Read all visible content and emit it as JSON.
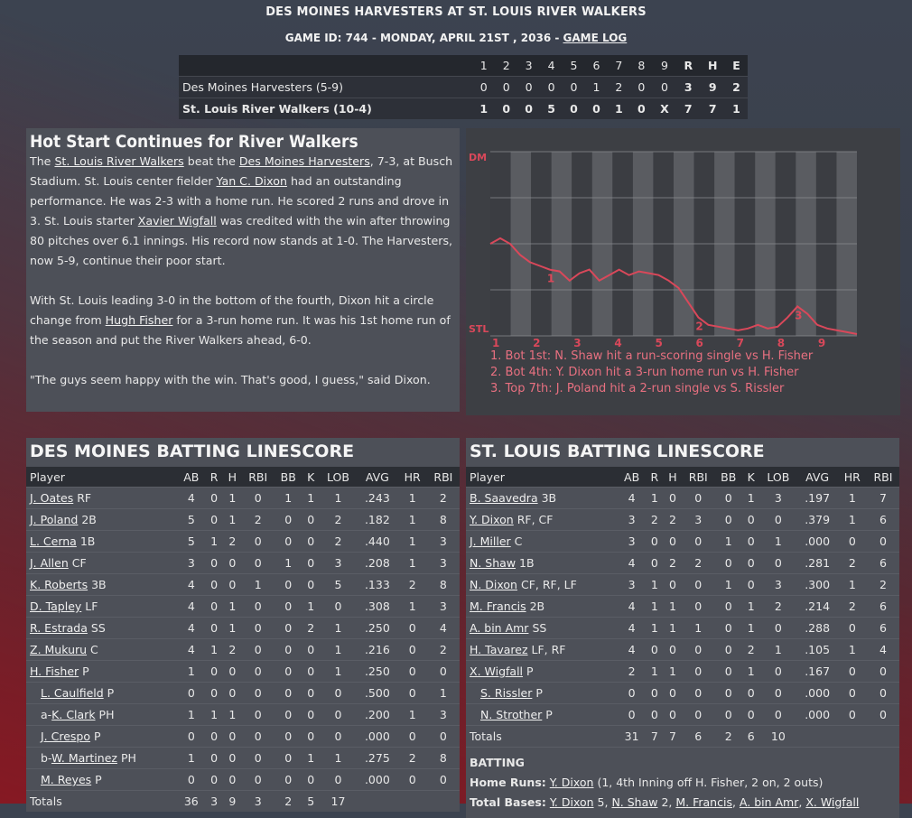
{
  "header": {
    "title": "DES MOINES HARVESTERS AT ST. LOUIS RIVER WALKERS",
    "subtitle_prefix": "GAME ID: 744 - MONDAY, APRIL 21ST , 2036 - ",
    "game_log_link": "GAME LOG"
  },
  "linescore": {
    "innings": [
      "1",
      "2",
      "3",
      "4",
      "5",
      "6",
      "7",
      "8",
      "9"
    ],
    "rhe": [
      "R",
      "H",
      "E"
    ],
    "teams": [
      {
        "name": "Des Moines Harvesters (5-9)",
        "innings": [
          "0",
          "0",
          "0",
          "0",
          "0",
          "1",
          "2",
          "0",
          "0"
        ],
        "rhe": [
          "3",
          "9",
          "2"
        ]
      },
      {
        "name": "St. Louis River Walkers (10-4)",
        "innings": [
          "1",
          "0",
          "0",
          "5",
          "0",
          "0",
          "1",
          "0",
          "X"
        ],
        "rhe": [
          "7",
          "7",
          "1"
        ]
      }
    ]
  },
  "story": {
    "headline": "Hot Start Continues for River Walkers",
    "p1": {
      "t1": "The ",
      "l1": "St. Louis River Walkers",
      "t2": " beat the ",
      "l2": "Des Moines Harvesters",
      "t3": ", 7-3, at Busch Stadium. St. Louis center fielder ",
      "l3": "Yan C. Dixon",
      "t4": " had an outstanding performance. He was 2-3 with a home run. He scored 2 runs and drove in 3. St. Louis starter ",
      "l4": "Xavier Wigfall",
      "t5": " was credited with the win after throwing 80 pitches over 6.1 innings. His record now stands at 1-0. The Harvesters, now 5-9, continue their poor start."
    },
    "p2": {
      "t1": "With St. Louis leading 3-0 in the bottom of the fourth, Dixon hit a circle change from ",
      "l1": "Hugh Fisher",
      "t2": " for a 3-run home run. It was his 1st home run of the season and put the River Walkers ahead, 6-0."
    },
    "p3": "\"The guys seem happy with the win. That's good, I guess,\" said Dixon."
  },
  "chart_data": {
    "type": "line",
    "title": "",
    "xlabel": "",
    "ylabel": "",
    "top_label": "DM",
    "bottom_label": "STL",
    "x_ticks": [
      "1",
      "2",
      "3",
      "4",
      "5",
      "6",
      "7",
      "8",
      "9"
    ],
    "ylim": [
      0,
      100
    ],
    "series": [
      {
        "values": [
          50,
          53,
          50,
          44,
          40,
          38,
          36,
          35,
          30,
          34,
          36,
          30,
          33,
          36,
          33,
          35,
          34,
          33,
          30,
          26,
          18,
          10,
          6,
          5,
          4,
          3,
          4,
          6,
          4,
          5,
          10,
          16,
          12,
          6,
          4,
          3,
          2,
          1
        ]
      }
    ],
    "markers": [
      {
        "label": "1",
        "index": 6
      },
      {
        "label": "2",
        "index": 21
      },
      {
        "label": "3",
        "index": 31
      }
    ],
    "line_color": "#d9485a",
    "moments": [
      "1. Bot 1st: N. Shaw hit a run-scoring single vs H. Fisher",
      "2. Bot 4th: Y. Dixon hit a 3-run home run vs H. Fisher",
      "3. Top 7th: J. Poland hit a 2-run single vs S. Rissler"
    ]
  },
  "away": {
    "title": "DES MOINES BATTING LINESCORE",
    "columns": [
      "Player",
      "AB",
      "R",
      "H",
      "RBI",
      "BB",
      "K",
      "LOB",
      "AVG",
      "HR",
      "RBI"
    ],
    "rows": [
      {
        "pre": "",
        "name": "J. Oates",
        "pos": "RF",
        "sub": false,
        "stats": [
          "4",
          "0",
          "1",
          "0",
          "1",
          "1",
          "1",
          ".243",
          "1",
          "2"
        ]
      },
      {
        "pre": "",
        "name": "J. Poland",
        "pos": "2B",
        "sub": false,
        "stats": [
          "5",
          "0",
          "1",
          "2",
          "0",
          "0",
          "2",
          ".182",
          "1",
          "8"
        ]
      },
      {
        "pre": "",
        "name": "L. Cerna",
        "pos": "1B",
        "sub": false,
        "stats": [
          "5",
          "1",
          "2",
          "0",
          "0",
          "0",
          "2",
          ".440",
          "1",
          "3"
        ]
      },
      {
        "pre": "",
        "name": "J. Allen",
        "pos": "CF",
        "sub": false,
        "stats": [
          "3",
          "0",
          "0",
          "0",
          "1",
          "0",
          "3",
          ".208",
          "1",
          "3"
        ]
      },
      {
        "pre": "",
        "name": "K. Roberts",
        "pos": "3B",
        "sub": false,
        "stats": [
          "4",
          "0",
          "0",
          "1",
          "0",
          "0",
          "5",
          ".133",
          "2",
          "8"
        ]
      },
      {
        "pre": "",
        "name": "D. Tapley",
        "pos": "LF",
        "sub": false,
        "stats": [
          "4",
          "0",
          "1",
          "0",
          "0",
          "1",
          "0",
          ".308",
          "1",
          "3"
        ]
      },
      {
        "pre": "",
        "name": "R. Estrada",
        "pos": "SS",
        "sub": false,
        "stats": [
          "4",
          "0",
          "1",
          "0",
          "0",
          "2",
          "1",
          ".250",
          "0",
          "4"
        ]
      },
      {
        "pre": "",
        "name": "Z. Mukuru",
        "pos": "C",
        "sub": false,
        "stats": [
          "4",
          "1",
          "2",
          "0",
          "0",
          "0",
          "1",
          ".216",
          "0",
          "2"
        ]
      },
      {
        "pre": "",
        "name": "H. Fisher",
        "pos": "P",
        "sub": false,
        "stats": [
          "1",
          "0",
          "0",
          "0",
          "0",
          "0",
          "1",
          ".250",
          "0",
          "0"
        ]
      },
      {
        "pre": "",
        "name": "L. Caulfield",
        "pos": "P",
        "sub": true,
        "stats": [
          "0",
          "0",
          "0",
          "0",
          "0",
          "0",
          "0",
          ".500",
          "0",
          "1"
        ]
      },
      {
        "pre": "a-",
        "name": "K. Clark",
        "pos": "PH",
        "sub": true,
        "stats": [
          "1",
          "1",
          "1",
          "0",
          "0",
          "0",
          "0",
          ".200",
          "1",
          "3"
        ]
      },
      {
        "pre": "",
        "name": "J. Crespo",
        "pos": "P",
        "sub": true,
        "stats": [
          "0",
          "0",
          "0",
          "0",
          "0",
          "0",
          "0",
          ".000",
          "0",
          "0"
        ]
      },
      {
        "pre": "b-",
        "name": "W. Martinez",
        "pos": "PH",
        "sub": true,
        "stats": [
          "1",
          "0",
          "0",
          "0",
          "0",
          "1",
          "1",
          ".275",
          "2",
          "8"
        ]
      },
      {
        "pre": "",
        "name": "M. Reyes",
        "pos": "P",
        "sub": true,
        "stats": [
          "0",
          "0",
          "0",
          "0",
          "0",
          "0",
          "0",
          ".000",
          "0",
          "0"
        ]
      }
    ],
    "totals": {
      "label": "Totals",
      "stats": [
        "36",
        "3",
        "9",
        "3",
        "2",
        "5",
        "17",
        "",
        "",
        ""
      ]
    }
  },
  "home": {
    "title": "ST. LOUIS BATTING LINESCORE",
    "columns": [
      "Player",
      "AB",
      "R",
      "H",
      "RBI",
      "BB",
      "K",
      "LOB",
      "AVG",
      "HR",
      "RBI"
    ],
    "rows": [
      {
        "pre": "",
        "name": "B. Saavedra",
        "pos": "3B",
        "sub": false,
        "stats": [
          "4",
          "1",
          "0",
          "0",
          "0",
          "1",
          "3",
          ".197",
          "1",
          "7"
        ]
      },
      {
        "pre": "",
        "name": "Y. Dixon",
        "pos": "RF, CF",
        "sub": false,
        "stats": [
          "3",
          "2",
          "2",
          "3",
          "0",
          "0",
          "0",
          ".379",
          "1",
          "6"
        ]
      },
      {
        "pre": "",
        "name": "J. Miller",
        "pos": "C",
        "sub": false,
        "stats": [
          "3",
          "0",
          "0",
          "0",
          "1",
          "0",
          "1",
          ".000",
          "0",
          "0"
        ]
      },
      {
        "pre": "",
        "name": "N. Shaw",
        "pos": "1B",
        "sub": false,
        "stats": [
          "4",
          "0",
          "2",
          "2",
          "0",
          "0",
          "0",
          ".281",
          "2",
          "6"
        ]
      },
      {
        "pre": "",
        "name": "N. Dixon",
        "pos": "CF, RF, LF",
        "sub": false,
        "stats": [
          "3",
          "1",
          "0",
          "0",
          "1",
          "0",
          "3",
          ".300",
          "1",
          "2"
        ]
      },
      {
        "pre": "",
        "name": "M. Francis",
        "pos": "2B",
        "sub": false,
        "stats": [
          "4",
          "1",
          "1",
          "0",
          "0",
          "1",
          "2",
          ".214",
          "2",
          "6"
        ]
      },
      {
        "pre": "",
        "name": "A. bin Amr",
        "pos": "SS",
        "sub": false,
        "stats": [
          "4",
          "1",
          "1",
          "1",
          "0",
          "1",
          "0",
          ".288",
          "0",
          "6"
        ]
      },
      {
        "pre": "",
        "name": "H. Tavarez",
        "pos": "LF, RF",
        "sub": false,
        "stats": [
          "4",
          "0",
          "0",
          "0",
          "0",
          "2",
          "1",
          ".105",
          "1",
          "4"
        ]
      },
      {
        "pre": "",
        "name": "X. Wigfall",
        "pos": "P",
        "sub": false,
        "stats": [
          "2",
          "1",
          "1",
          "0",
          "0",
          "1",
          "0",
          ".167",
          "0",
          "0"
        ]
      },
      {
        "pre": "",
        "name": "S. Rissler",
        "pos": "P",
        "sub": true,
        "stats": [
          "0",
          "0",
          "0",
          "0",
          "0",
          "0",
          "0",
          ".000",
          "0",
          "0"
        ]
      },
      {
        "pre": "",
        "name": "N. Strother",
        "pos": "P",
        "sub": true,
        "stats": [
          "0",
          "0",
          "0",
          "0",
          "0",
          "0",
          "0",
          ".000",
          "0",
          "0"
        ]
      }
    ],
    "totals": {
      "label": "Totals",
      "stats": [
        "31",
        "7",
        "7",
        "6",
        "2",
        "6",
        "10",
        "",
        "",
        ""
      ]
    },
    "batting": {
      "heading": "BATTING",
      "hr_label": "Home Runs:",
      "hr_player": "Y. Dixon",
      "hr_detail": " (1, 4th Inning off H. Fisher, 2 on, 2 outs)",
      "tb_label": "Total Bases:",
      "tb_entries": [
        {
          "name": "Y. Dixon",
          "val": " 5"
        },
        {
          "name": "N. Shaw",
          "val": " 2"
        },
        {
          "name": "M. Francis",
          "val": ""
        },
        {
          "name": "A. bin Amr",
          "val": ""
        },
        {
          "name": "X. Wigfall",
          "val": ""
        }
      ]
    }
  }
}
